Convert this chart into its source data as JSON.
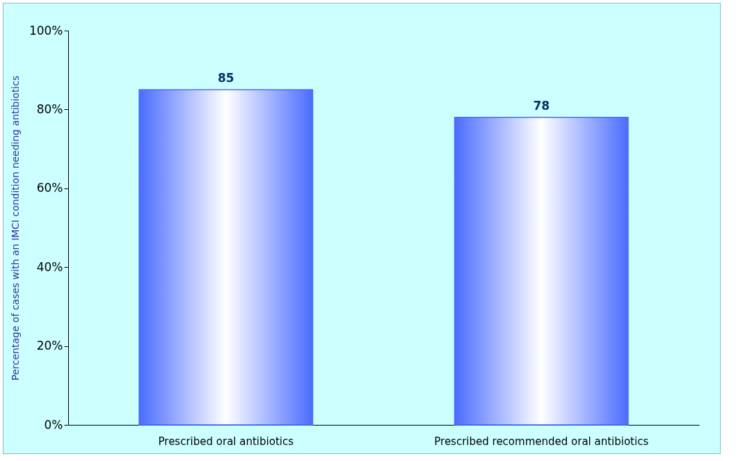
{
  "chart_data": {
    "type": "bar",
    "ylabel": "Percentage of cases with an IMCI condition needing antibiotics",
    "categories": [
      "Prescribed oral antibiotics",
      "Prescribed recommended oral antibiotics"
    ],
    "values": [
      85,
      78
    ],
    "color": "#4a6cff",
    "data_labels": true,
    "ylim": [
      0,
      100
    ],
    "yticks": [
      {
        "value": 0,
        "label": "0%"
      },
      {
        "value": 20,
        "label": "20%"
      },
      {
        "value": 40,
        "label": "40%"
      },
      {
        "value": 60,
        "label": "60%"
      },
      {
        "value": 80,
        "label": "80%"
      },
      {
        "value": 100,
        "label": "100%"
      }
    ],
    "grid": false
  }
}
